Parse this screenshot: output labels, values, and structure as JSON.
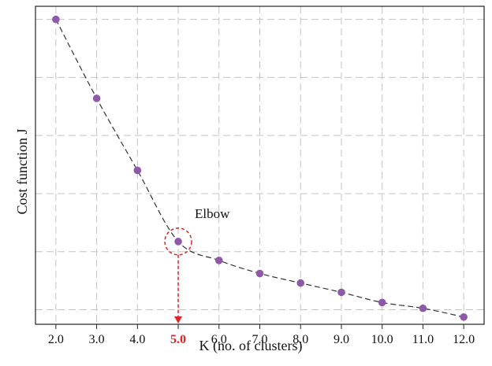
{
  "chart_data": {
    "type": "scatter",
    "title": "",
    "xlabel": "K (no. of clusters)",
    "ylabel": "Cost function J",
    "x": [
      2.0,
      3.0,
      4.0,
      5.0,
      6.0,
      7.0,
      8.0,
      9.0,
      10.0,
      11.0,
      12.0
    ],
    "series": [
      {
        "values": [
          100.0,
          72.8,
          48.0,
          23.5,
          17.0,
          12.5,
          9.2,
          6.0,
          2.5,
          0.5,
          -2.5
        ],
        "line_style": "dashed",
        "marker": "circle"
      }
    ],
    "xlim": [
      1.5,
      12.5
    ],
    "ylim": [
      -5.0,
      104.5
    ],
    "xticks": [
      "2.0",
      "3.0",
      "4.0",
      "5.0",
      "6.0",
      "7.0",
      "8.0",
      "9.0",
      "10.0",
      "11.0",
      "12.0"
    ],
    "highlight_tick": "5.0",
    "grid": true,
    "grid_style": "dashed",
    "annotation": {
      "text": "Elbow",
      "x": 5.0,
      "y": 23.5
    },
    "colors": {
      "marker": "#8e5aa8",
      "line": "#333333",
      "grid": "#c4c4c4",
      "highlight": "#e02424",
      "axes": "#222222"
    }
  }
}
